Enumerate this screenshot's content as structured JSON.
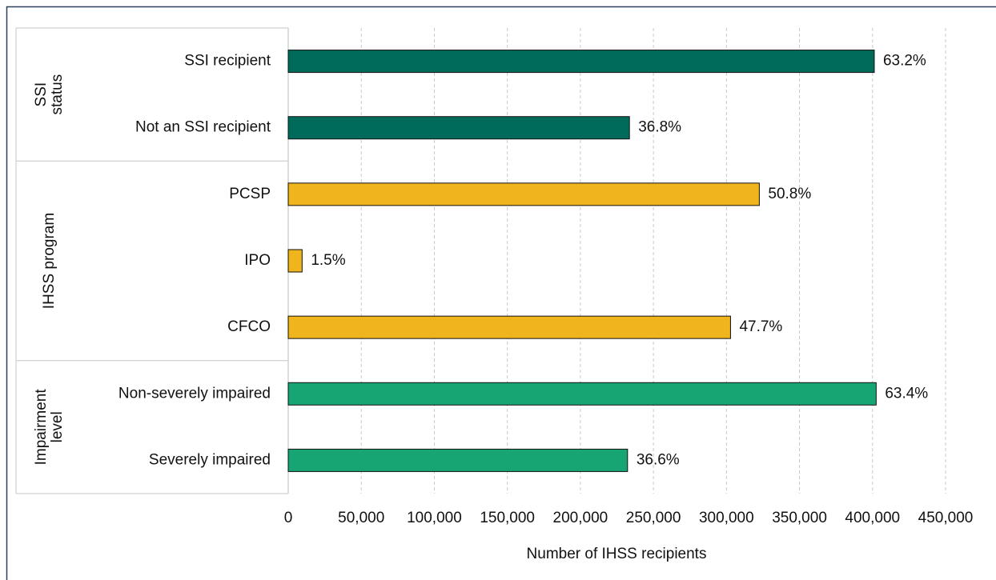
{
  "chart_data": {
    "type": "bar",
    "orientation": "horizontal",
    "x_label": "Number of IHSS recipients",
    "xlim": [
      0,
      450000
    ],
    "xticks": [
      0,
      {
        "value": 50000,
        "label": "50,000"
      },
      {
        "value": 100000,
        "label": "100,000"
      },
      {
        "value": 150000,
        "label": "150,000"
      },
      {
        "value": 200000,
        "label": "200,000"
      },
      {
        "value": 250000,
        "label": "250,000"
      },
      {
        "value": 300000,
        "label": "300,000"
      },
      {
        "value": 350000,
        "label": "350,000"
      },
      {
        "value": 400000,
        "label": "400,000"
      },
      {
        "value": 450000,
        "label": "450,000"
      }
    ],
    "grid": true,
    "groups": [
      {
        "name": "SSI status",
        "color": "#006b5a",
        "categories": [
          "SSI recipient",
          "Not an SSI recipient"
        ],
        "values": [
          401200,
          233600
        ],
        "value_labels": [
          "63.2%",
          "36.8%"
        ]
      },
      {
        "name": "IHSS program",
        "color": "#f0b41c",
        "categories": [
          "PCSP",
          "IPO",
          "CFCO"
        ],
        "values": [
          322500,
          9500,
          302800
        ],
        "value_labels": [
          "50.8%",
          "1.5%",
          "47.7%"
        ]
      },
      {
        "name": "Impairment level",
        "color": "#17a673",
        "categories": [
          "Non-severely impaired",
          "Severely impaired"
        ],
        "values": [
          402500,
          232300
        ],
        "value_labels": [
          "63.4%",
          "36.6%"
        ]
      }
    ]
  }
}
